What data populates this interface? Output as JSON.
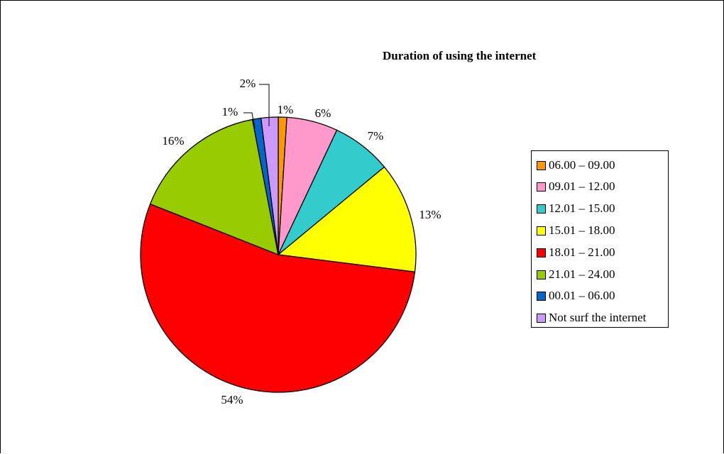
{
  "chart_data": {
    "type": "pie",
    "title": "Duration of using the internet",
    "categories": [
      "06.00 – 09.00",
      "09.01 – 12.00",
      "12.01 – 15.00",
      "15.01 – 18.00",
      "18.01 – 21.00",
      "21.01 – 24.00",
      "00.01 – 06.00",
      "Not surf the internet"
    ],
    "values": [
      1,
      6,
      7,
      13,
      54,
      16,
      1,
      2
    ],
    "value_labels": [
      "1%",
      "6%",
      "7%",
      "13%",
      "54%",
      "16%",
      "1%",
      "2%"
    ],
    "colors": [
      "#ff9900",
      "#ff99cc",
      "#33cccc",
      "#ffff00",
      "#ff0000",
      "#99cc00",
      "#0066cc",
      "#cc99ff"
    ],
    "legend_position": "right",
    "start_angle": "12 o'clock, clockwise"
  }
}
